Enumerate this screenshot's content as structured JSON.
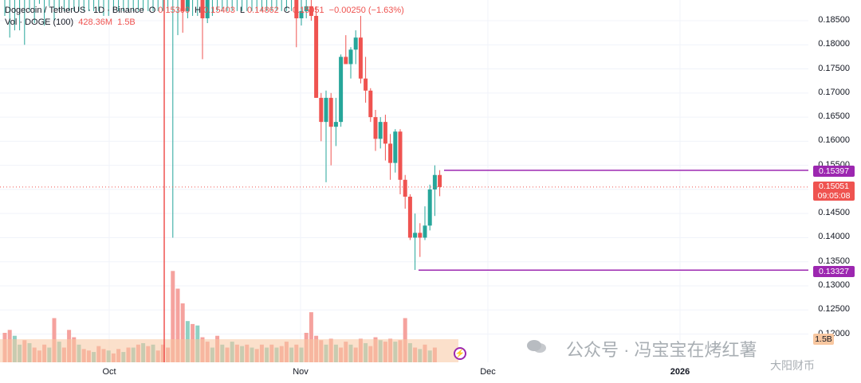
{
  "header": {
    "symbol": "Dogecoin / TetherUS · 1D · Binance",
    "o_label": "O",
    "o_value": "0.15300",
    "h_label": "H",
    "h_value": "0.15403",
    "l_label": "L",
    "l_value": "0.14862",
    "c_label": "C",
    "c_value": "0.15051",
    "change": "−0.00250 (−1.63%)",
    "vol_label": "Vol · DOGE (100)",
    "vol_value1": "428.36M",
    "vol_value2": "1.5B"
  },
  "price_tags": {
    "resistance": "0.15397",
    "current_price": "0.15051",
    "countdown": "09:05:08",
    "support": "0.13327",
    "vol_tag": "1.5B"
  },
  "watermark": {
    "main": "公众号 · 冯宝宝在烤红薯",
    "corner": "大阳财币"
  },
  "colors": {
    "up": "#26a69a",
    "down": "#ef5350",
    "level_line": "#9c27b0",
    "vol_up": "#8fd0c3",
    "vol_down": "#f5a29e",
    "vol_ma": "#f8c7a0"
  },
  "chart_data": {
    "type": "candlestick",
    "title": "Dogecoin / TetherUS · 1D · Binance",
    "y_ticks": [
      "0.18500",
      "0.18000",
      "0.17500",
      "0.17000",
      "0.16500",
      "0.16000",
      "0.15500",
      "0.15000",
      "0.14500",
      "0.14000",
      "0.13500",
      "0.13000",
      "0.12500",
      "0.12000"
    ],
    "x_ticks": [
      "Oct",
      "Nov",
      "Dec",
      "2026"
    ],
    "ylim": [
      0.1175,
      0.1895
    ],
    "levels": [
      0.15397,
      0.13327
    ],
    "current_price": 0.15051,
    "candles": [
      {
        "o": 0.1895,
        "h": 0.1895,
        "l": 0.186,
        "c": 0.1895
      },
      {
        "o": 0.1895,
        "h": 0.1895,
        "l": 0.1815,
        "c": 0.1895
      },
      {
        "o": 0.1895,
        "h": 0.1895,
        "l": 0.183,
        "c": 0.1895
      },
      {
        "o": 0.1895,
        "h": 0.1895,
        "l": 0.183,
        "c": 0.1895
      },
      {
        "o": 0.1895,
        "h": 0.1895,
        "l": 0.18,
        "c": 0.1895
      },
      {
        "o": 0.1895,
        "h": 0.1895,
        "l": 0.187,
        "c": 0.1895
      },
      {
        "o": 0.1895,
        "h": 0.1895,
        "l": 0.1845,
        "c": 0.1895
      },
      {
        "o": 0.1895,
        "h": 0.1895,
        "l": 0.1885,
        "c": 0.1895
      },
      {
        "o": 0.1895,
        "h": 0.1895,
        "l": 0.184,
        "c": 0.1895
      },
      {
        "o": 0.1895,
        "h": 0.1895,
        "l": 0.188,
        "c": 0.1895
      },
      {
        "o": 0.1895,
        "h": 0.1895,
        "l": 0.185,
        "c": 0.1895
      },
      {
        "o": 0.1895,
        "h": 0.1895,
        "l": 0.187,
        "c": 0.1895
      },
      {
        "o": 0.1895,
        "h": 0.1895,
        "l": 0.187,
        "c": 0.1895
      },
      {
        "o": 0.1895,
        "h": 0.1895,
        "l": 0.187,
        "c": 0.1895
      },
      {
        "o": 0.1895,
        "h": 0.1895,
        "l": 0.187,
        "c": 0.1895
      },
      {
        "o": 0.1895,
        "h": 0.1895,
        "l": 0.187,
        "c": 0.1895
      },
      {
        "o": 0.1895,
        "h": 0.1895,
        "l": 0.187,
        "c": 0.1895
      },
      {
        "o": 0.1895,
        "h": 0.1895,
        "l": 0.187,
        "c": 0.1895
      },
      {
        "o": 0.1895,
        "h": 0.1895,
        "l": 0.187,
        "c": 0.1895
      },
      {
        "o": 0.1895,
        "h": 0.1895,
        "l": 0.187,
        "c": 0.1895
      },
      {
        "o": 0.1895,
        "h": 0.1895,
        "l": 0.186,
        "c": 0.1895
      },
      {
        "o": 0.1895,
        "h": 0.1895,
        "l": 0.186,
        "c": 0.1895
      },
      {
        "o": 0.1895,
        "h": 0.1895,
        "l": 0.187,
        "c": 0.1895
      },
      {
        "o": 0.1895,
        "h": 0.1895,
        "l": 0.187,
        "c": 0.1895
      },
      {
        "o": 0.1895,
        "h": 0.1895,
        "l": 0.187,
        "c": 0.1895
      },
      {
        "o": 0.1895,
        "h": 0.1895,
        "l": 0.187,
        "c": 0.1895
      },
      {
        "o": 0.1895,
        "h": 0.1895,
        "l": 0.187,
        "c": 0.1895
      },
      {
        "o": 0.1895,
        "h": 0.1895,
        "l": 0.187,
        "c": 0.1895
      },
      {
        "o": 0.1895,
        "h": 0.1895,
        "l": 0.187,
        "c": 0.1895
      },
      {
        "o": 0.1895,
        "h": 0.1895,
        "l": 0.187,
        "c": 0.1895
      },
      {
        "o": 0.1895,
        "h": 0.1895,
        "l": 0.187,
        "c": 0.1895
      },
      {
        "o": 0.1895,
        "h": 0.1895,
        "l": 0.187,
        "c": 0.1895
      },
      {
        "o": 0.1895,
        "h": 0.1895,
        "l": 0.187,
        "c": 0.1895
      },
      {
        "o": 0.1895,
        "h": 0.1895,
        "l": 0.187,
        "c": 0.1895
      },
      {
        "o": 0.1895,
        "h": 0.1895,
        "l": 0.14,
        "c": 0.1895
      },
      {
        "o": 0.1895,
        "h": 0.1895,
        "l": 0.182,
        "c": 0.1895
      },
      {
        "o": 0.1895,
        "h": 0.1895,
        "l": 0.1825,
        "c": 0.187
      },
      {
        "o": 0.187,
        "h": 0.1895,
        "l": 0.1855,
        "c": 0.1895
      },
      {
        "o": 0.1895,
        "h": 0.1895,
        "l": 0.186,
        "c": 0.1895
      },
      {
        "o": 0.1895,
        "h": 0.1895,
        "l": 0.186,
        "c": 0.1895
      },
      {
        "o": 0.1895,
        "h": 0.1895,
        "l": 0.177,
        "c": 0.1855
      },
      {
        "o": 0.1855,
        "h": 0.1895,
        "l": 0.1845,
        "c": 0.1895
      },
      {
        "o": 0.1895,
        "h": 0.1895,
        "l": 0.186,
        "c": 0.1895
      },
      {
        "o": 0.1895,
        "h": 0.1895,
        "l": 0.187,
        "c": 0.1895
      },
      {
        "o": 0.1895,
        "h": 0.1895,
        "l": 0.187,
        "c": 0.1895
      },
      {
        "o": 0.1895,
        "h": 0.1895,
        "l": 0.187,
        "c": 0.1895
      },
      {
        "o": 0.1895,
        "h": 0.1895,
        "l": 0.187,
        "c": 0.1895
      },
      {
        "o": 0.1895,
        "h": 0.1895,
        "l": 0.187,
        "c": 0.1895
      },
      {
        "o": 0.1895,
        "h": 0.1895,
        "l": 0.187,
        "c": 0.1895
      },
      {
        "o": 0.1895,
        "h": 0.1895,
        "l": 0.187,
        "c": 0.1895
      },
      {
        "o": 0.1895,
        "h": 0.1895,
        "l": 0.187,
        "c": 0.1895
      },
      {
        "o": 0.1895,
        "h": 0.1895,
        "l": 0.187,
        "c": 0.1895
      },
      {
        "o": 0.1895,
        "h": 0.1895,
        "l": 0.187,
        "c": 0.1895
      },
      {
        "o": 0.1895,
        "h": 0.1895,
        "l": 0.187,
        "c": 0.1895
      },
      {
        "o": 0.1895,
        "h": 0.1895,
        "l": 0.187,
        "c": 0.1895
      },
      {
        "o": 0.1895,
        "h": 0.1895,
        "l": 0.187,
        "c": 0.1895
      },
      {
        "o": 0.1895,
        "h": 0.1895,
        "l": 0.187,
        "c": 0.1895
      },
      {
        "o": 0.1895,
        "h": 0.1895,
        "l": 0.187,
        "c": 0.1895
      },
      {
        "o": 0.1895,
        "h": 0.1895,
        "l": 0.187,
        "c": 0.1895
      },
      {
        "o": 0.1895,
        "h": 0.1895,
        "l": 0.1795,
        "c": 0.1855
      },
      {
        "o": 0.1855,
        "h": 0.1895,
        "l": 0.184,
        "c": 0.187
      },
      {
        "o": 0.187,
        "h": 0.1895,
        "l": 0.1855,
        "c": 0.188
      },
      {
        "o": 0.188,
        "h": 0.1895,
        "l": 0.185,
        "c": 0.186
      },
      {
        "o": 0.186,
        "h": 0.188,
        "l": 0.169,
        "c": 0.169
      },
      {
        "o": 0.169,
        "h": 0.17,
        "l": 0.16,
        "c": 0.164
      },
      {
        "o": 0.164,
        "h": 0.1705,
        "l": 0.1515,
        "c": 0.169
      },
      {
        "o": 0.169,
        "h": 0.17,
        "l": 0.155,
        "c": 0.163
      },
      {
        "o": 0.163,
        "h": 0.169,
        "l": 0.159,
        "c": 0.164
      },
      {
        "o": 0.164,
        "h": 0.178,
        "l": 0.163,
        "c": 0.1775
      },
      {
        "o": 0.1775,
        "h": 0.182,
        "l": 0.176,
        "c": 0.176
      },
      {
        "o": 0.176,
        "h": 0.1795,
        "l": 0.173,
        "c": 0.179
      },
      {
        "o": 0.179,
        "h": 0.183,
        "l": 0.176,
        "c": 0.1815
      },
      {
        "o": 0.1815,
        "h": 0.186,
        "l": 0.172,
        "c": 0.173
      },
      {
        "o": 0.173,
        "h": 0.1775,
        "l": 0.168,
        "c": 0.1705
      },
      {
        "o": 0.1705,
        "h": 0.171,
        "l": 0.164,
        "c": 0.165
      },
      {
        "o": 0.165,
        "h": 0.1665,
        "l": 0.158,
        "c": 0.1605
      },
      {
        "o": 0.1605,
        "h": 0.165,
        "l": 0.1585,
        "c": 0.164
      },
      {
        "o": 0.164,
        "h": 0.1655,
        "l": 0.156,
        "c": 0.1595
      },
      {
        "o": 0.1595,
        "h": 0.1615,
        "l": 0.152,
        "c": 0.1555
      },
      {
        "o": 0.1555,
        "h": 0.1625,
        "l": 0.1535,
        "c": 0.162
      },
      {
        "o": 0.162,
        "h": 0.1625,
        "l": 0.149,
        "c": 0.152
      },
      {
        "o": 0.152,
        "h": 0.153,
        "l": 0.146,
        "c": 0.1485
      },
      {
        "o": 0.1485,
        "h": 0.149,
        "l": 0.1395,
        "c": 0.14
      },
      {
        "o": 0.14,
        "h": 0.145,
        "l": 0.1333,
        "c": 0.141
      },
      {
        "o": 0.141,
        "h": 0.143,
        "l": 0.136,
        "c": 0.14
      },
      {
        "o": 0.14,
        "h": 0.1465,
        "l": 0.1395,
        "c": 0.1425
      },
      {
        "o": 0.1425,
        "h": 0.151,
        "l": 0.1415,
        "c": 0.15
      },
      {
        "o": 0.15,
        "h": 0.155,
        "l": 0.1445,
        "c": 0.153
      },
      {
        "o": 0.153,
        "h": 0.154,
        "l": 0.1486,
        "c": 0.1505
      }
    ],
    "volumes": [
      {
        "v": 0.2,
        "up": false
      },
      {
        "v": 0.22,
        "up": false
      },
      {
        "v": 0.18,
        "up": true
      },
      {
        "v": 0.12,
        "up": true
      },
      {
        "v": 0.15,
        "up": false
      },
      {
        "v": 0.13,
        "up": true
      },
      {
        "v": 0.1,
        "up": false
      },
      {
        "v": 0.08,
        "up": false
      },
      {
        "v": 0.12,
        "up": false
      },
      {
        "v": 0.1,
        "up": true
      },
      {
        "v": 0.3,
        "up": false
      },
      {
        "v": 0.14,
        "up": true
      },
      {
        "v": 0.1,
        "up": false
      },
      {
        "v": 0.22,
        "up": false
      },
      {
        "v": 0.17,
        "up": false
      },
      {
        "v": 0.12,
        "up": true
      },
      {
        "v": 0.09,
        "up": false
      },
      {
        "v": 0.08,
        "up": false
      },
      {
        "v": 0.07,
        "up": true
      },
      {
        "v": 0.11,
        "up": false
      },
      {
        "v": 0.09,
        "up": false
      },
      {
        "v": 0.08,
        "up": true
      },
      {
        "v": 0.06,
        "up": false
      },
      {
        "v": 0.09,
        "up": false
      },
      {
        "v": 0.07,
        "up": true
      },
      {
        "v": 0.1,
        "up": false
      },
      {
        "v": 0.1,
        "up": true
      },
      {
        "v": 0.12,
        "up": false
      },
      {
        "v": 0.13,
        "up": true
      },
      {
        "v": 0.11,
        "up": false
      },
      {
        "v": 0.12,
        "up": true
      },
      {
        "v": 0.08,
        "up": false
      },
      {
        "v": 0.12,
        "up": false
      },
      {
        "v": 0.1,
        "up": false
      },
      {
        "v": 0.62,
        "up": false
      },
      {
        "v": 0.5,
        "up": false
      },
      {
        "v": 0.4,
        "up": false
      },
      {
        "v": 0.28,
        "up": true
      },
      {
        "v": 0.26,
        "up": false
      },
      {
        "v": 0.25,
        "up": true
      },
      {
        "v": 0.17,
        "up": false
      },
      {
        "v": 0.14,
        "up": false
      },
      {
        "v": 0.1,
        "up": true
      },
      {
        "v": 0.18,
        "up": false
      },
      {
        "v": 0.12,
        "up": true
      },
      {
        "v": 0.1,
        "up": false
      },
      {
        "v": 0.14,
        "up": true
      },
      {
        "v": 0.12,
        "up": false
      },
      {
        "v": 0.11,
        "up": true
      },
      {
        "v": 0.12,
        "up": false
      },
      {
        "v": 0.1,
        "up": true
      },
      {
        "v": 0.09,
        "up": false
      },
      {
        "v": 0.12,
        "up": false
      },
      {
        "v": 0.1,
        "up": true
      },
      {
        "v": 0.12,
        "up": false
      },
      {
        "v": 0.1,
        "up": true
      },
      {
        "v": 0.11,
        "up": false
      },
      {
        "v": 0.14,
        "up": false
      },
      {
        "v": 0.1,
        "up": true
      },
      {
        "v": 0.12,
        "up": false
      },
      {
        "v": 0.1,
        "up": true
      },
      {
        "v": 0.2,
        "up": false
      },
      {
        "v": 0.34,
        "up": false
      },
      {
        "v": 0.18,
        "up": false
      },
      {
        "v": 0.15,
        "up": false
      },
      {
        "v": 0.12,
        "up": true
      },
      {
        "v": 0.16,
        "up": false
      },
      {
        "v": 0.12,
        "up": true
      },
      {
        "v": 0.1,
        "up": false
      },
      {
        "v": 0.14,
        "up": false
      },
      {
        "v": 0.12,
        "up": true
      },
      {
        "v": 0.1,
        "up": false
      },
      {
        "v": 0.16,
        "up": false
      },
      {
        "v": 0.13,
        "up": true
      },
      {
        "v": 0.11,
        "up": false
      },
      {
        "v": 0.17,
        "up": false
      },
      {
        "v": 0.15,
        "up": true
      },
      {
        "v": 0.14,
        "up": false
      },
      {
        "v": 0.16,
        "up": false
      },
      {
        "v": 0.14,
        "up": true
      },
      {
        "v": 0.15,
        "up": false
      },
      {
        "v": 0.3,
        "up": false
      },
      {
        "v": 0.13,
        "up": true
      },
      {
        "v": 0.1,
        "up": false
      },
      {
        "v": 0.09,
        "up": true
      },
      {
        "v": 0.12,
        "up": false
      },
      {
        "v": 0.08,
        "up": true
      },
      {
        "v": 0.1,
        "up": false
      }
    ]
  }
}
